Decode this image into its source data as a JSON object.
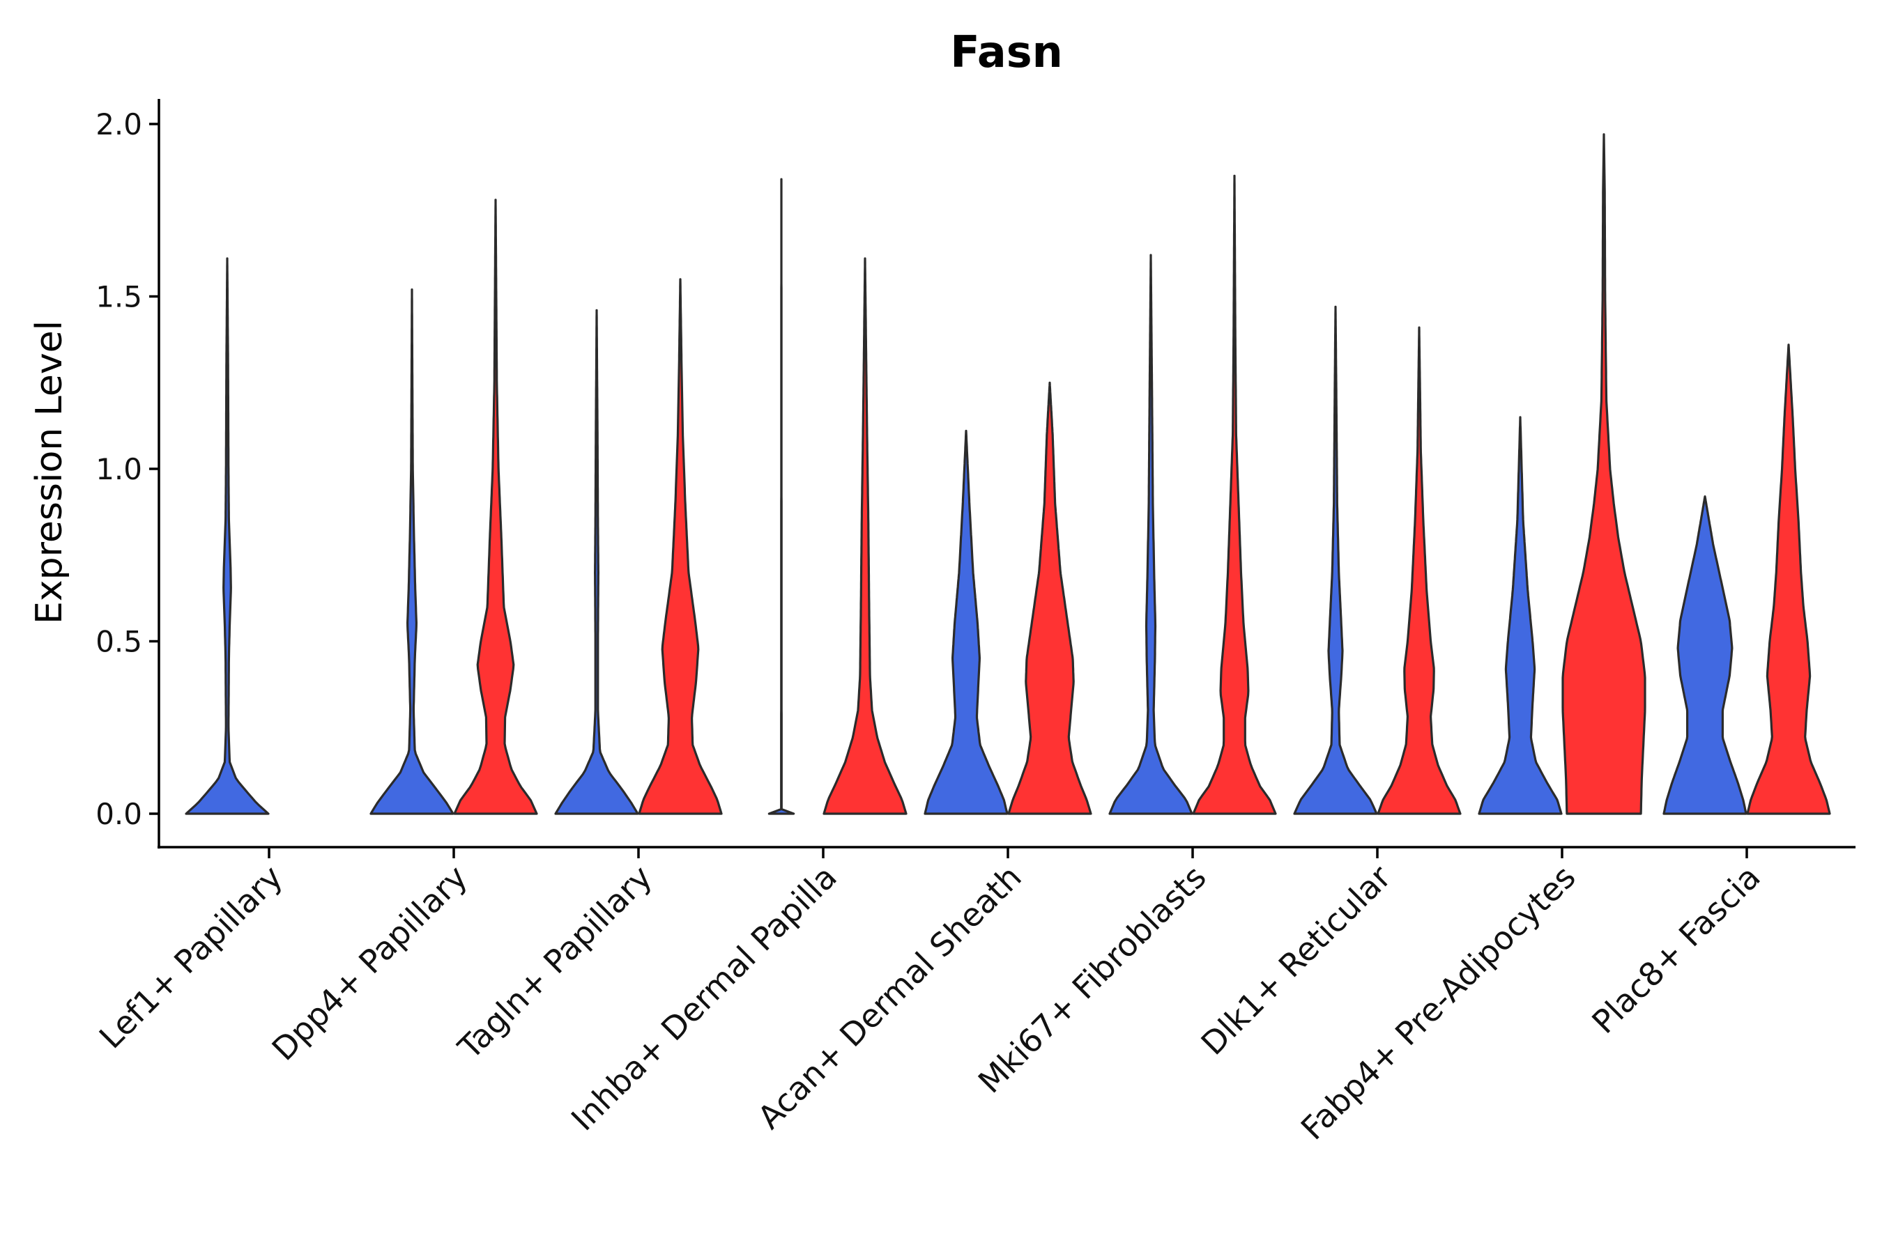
{
  "chart_data": {
    "type": "violin",
    "title": "Fasn",
    "xlabel": "",
    "ylabel": "Expression Level",
    "ylim": [
      -0.1,
      2.08
    ],
    "yticks": [
      "0.0",
      "0.5",
      "1.0",
      "1.5",
      "2.0"
    ],
    "grid": false,
    "legend": "none",
    "colors": {
      "group_a": "#4169E1",
      "group_b": "#FF3333",
      "outline": "#2b2b2b"
    },
    "categories": [
      "Lef1+ Papillary",
      "Dpp4+ Papillary",
      "Tagln+ Papillary",
      "Inhba+ Dermal Papilla",
      "Acan+ Dermal Sheath",
      "Mki67+ Fibroblasts",
      "Dlk1+ Reticular",
      "Fabp4+ Pre-Adipocytes",
      "Plac8+ Fascia"
    ],
    "series": [
      {
        "name": "group_a",
        "color": "#4169E1",
        "violins": [
          {
            "max": 1.61,
            "density": [
              [
                0,
                1.0
              ],
              [
                0.03,
                0.72
              ],
              [
                0.06,
                0.5
              ],
              [
                0.1,
                0.22
              ],
              [
                0.15,
                0.06
              ],
              [
                0.25,
                0.03
              ],
              [
                0.45,
                0.04
              ],
              [
                0.55,
                0.06
              ],
              [
                0.65,
                0.09
              ],
              [
                0.72,
                0.08
              ],
              [
                0.85,
                0.04
              ],
              [
                1.0,
                0.03
              ],
              [
                1.3,
                0.02
              ],
              [
                1.61,
                0.0
              ]
            ]
          },
          {
            "max": 1.52,
            "density": [
              [
                0,
                1.0
              ],
              [
                0.03,
                0.85
              ],
              [
                0.07,
                0.6
              ],
              [
                0.12,
                0.28
              ],
              [
                0.18,
                0.07
              ],
              [
                0.3,
                0.04
              ],
              [
                0.45,
                0.07
              ],
              [
                0.55,
                0.11
              ],
              [
                0.65,
                0.08
              ],
              [
                0.8,
                0.05
              ],
              [
                1.0,
                0.02
              ],
              [
                1.52,
                0.0
              ]
            ]
          },
          {
            "max": 1.46,
            "density": [
              [
                0,
                1.0
              ],
              [
                0.03,
                0.85
              ],
              [
                0.07,
                0.62
              ],
              [
                0.12,
                0.3
              ],
              [
                0.18,
                0.08
              ],
              [
                0.3,
                0.03
              ],
              [
                0.5,
                0.03
              ],
              [
                0.7,
                0.04
              ],
              [
                0.85,
                0.03
              ],
              [
                1.1,
                0.02
              ],
              [
                1.46,
                0.0
              ]
            ]
          },
          {
            "max": 1.84,
            "density": [
              [
                0,
                0.3
              ],
              [
                0.004,
                0.0
              ],
              [
                0.01,
                0.005
              ],
              [
                1.84,
                0.0
              ]
            ]
          },
          {
            "max": 1.11,
            "density": [
              [
                0,
                1.0
              ],
              [
                0.04,
                0.92
              ],
              [
                0.08,
                0.78
              ],
              [
                0.14,
                0.55
              ],
              [
                0.2,
                0.34
              ],
              [
                0.28,
                0.26
              ],
              [
                0.38,
                0.3
              ],
              [
                0.45,
                0.33
              ],
              [
                0.55,
                0.28
              ],
              [
                0.7,
                0.17
              ],
              [
                0.9,
                0.08
              ],
              [
                1.11,
                0.0
              ]
            ]
          },
          {
            "max": 1.62,
            "density": [
              [
                0,
                1.0
              ],
              [
                0.04,
                0.86
              ],
              [
                0.08,
                0.6
              ],
              [
                0.13,
                0.3
              ],
              [
                0.2,
                0.1
              ],
              [
                0.3,
                0.07
              ],
              [
                0.45,
                0.1
              ],
              [
                0.55,
                0.11
              ],
              [
                0.7,
                0.08
              ],
              [
                0.9,
                0.05
              ],
              [
                1.2,
                0.03
              ],
              [
                1.62,
                0.0
              ]
            ]
          },
          {
            "max": 1.47,
            "density": [
              [
                0,
                1.0
              ],
              [
                0.04,
                0.85
              ],
              [
                0.08,
                0.6
              ],
              [
                0.13,
                0.3
              ],
              [
                0.2,
                0.1
              ],
              [
                0.3,
                0.08
              ],
              [
                0.4,
                0.14
              ],
              [
                0.47,
                0.17
              ],
              [
                0.55,
                0.14
              ],
              [
                0.7,
                0.08
              ],
              [
                0.9,
                0.04
              ],
              [
                1.2,
                0.02
              ],
              [
                1.47,
                0.0
              ]
            ]
          },
          {
            "max": 1.15,
            "density": [
              [
                0,
                1.0
              ],
              [
                0.04,
                0.9
              ],
              [
                0.09,
                0.65
              ],
              [
                0.15,
                0.38
              ],
              [
                0.22,
                0.26
              ],
              [
                0.32,
                0.3
              ],
              [
                0.42,
                0.35
              ],
              [
                0.5,
                0.3
              ],
              [
                0.65,
                0.18
              ],
              [
                0.85,
                0.07
              ],
              [
                1.15,
                0.0
              ]
            ]
          },
          {
            "max": 0.92,
            "density": [
              [
                0,
                1.0
              ],
              [
                0.04,
                0.93
              ],
              [
                0.09,
                0.8
              ],
              [
                0.15,
                0.62
              ],
              [
                0.22,
                0.43
              ],
              [
                0.3,
                0.43
              ],
              [
                0.4,
                0.6
              ],
              [
                0.48,
                0.66
              ],
              [
                0.56,
                0.6
              ],
              [
                0.66,
                0.42
              ],
              [
                0.78,
                0.2
              ],
              [
                0.92,
                0.0
              ]
            ]
          }
        ]
      },
      {
        "name": "group_b",
        "color": "#FF3333",
        "violins": [
          null,
          {
            "max": 1.78,
            "density": [
              [
                0,
                1.0
              ],
              [
                0.04,
                0.85
              ],
              [
                0.08,
                0.6
              ],
              [
                0.13,
                0.38
              ],
              [
                0.2,
                0.22
              ],
              [
                0.28,
                0.23
              ],
              [
                0.36,
                0.36
              ],
              [
                0.43,
                0.44
              ],
              [
                0.5,
                0.36
              ],
              [
                0.6,
                0.2
              ],
              [
                0.8,
                0.14
              ],
              [
                1.0,
                0.07
              ],
              [
                1.25,
                0.03
              ],
              [
                1.78,
                0.0
              ]
            ]
          },
          {
            "max": 1.55,
            "density": [
              [
                0,
                1.0
              ],
              [
                0.04,
                0.9
              ],
              [
                0.08,
                0.74
              ],
              [
                0.14,
                0.48
              ],
              [
                0.2,
                0.3
              ],
              [
                0.28,
                0.28
              ],
              [
                0.38,
                0.38
              ],
              [
                0.48,
                0.44
              ],
              [
                0.56,
                0.36
              ],
              [
                0.7,
                0.2
              ],
              [
                0.9,
                0.12
              ],
              [
                1.1,
                0.06
              ],
              [
                1.3,
                0.03
              ],
              [
                1.55,
                0.0
              ]
            ]
          },
          {
            "max": 1.61,
            "density": [
              [
                0,
                1.0
              ],
              [
                0.04,
                0.9
              ],
              [
                0.08,
                0.74
              ],
              [
                0.15,
                0.48
              ],
              [
                0.22,
                0.3
              ],
              [
                0.3,
                0.17
              ],
              [
                0.4,
                0.12
              ],
              [
                0.6,
                0.1
              ],
              [
                0.85,
                0.08
              ],
              [
                1.1,
                0.05
              ],
              [
                1.3,
                0.03
              ],
              [
                1.61,
                0.0
              ]
            ]
          },
          {
            "max": 1.25,
            "density": [
              [
                0,
                1.0
              ],
              [
                0.04,
                0.9
              ],
              [
                0.08,
                0.76
              ],
              [
                0.15,
                0.55
              ],
              [
                0.22,
                0.46
              ],
              [
                0.3,
                0.52
              ],
              [
                0.38,
                0.58
              ],
              [
                0.45,
                0.56
              ],
              [
                0.55,
                0.44
              ],
              [
                0.7,
                0.26
              ],
              [
                0.9,
                0.13
              ],
              [
                1.1,
                0.07
              ],
              [
                1.25,
                0.0
              ]
            ]
          },
          {
            "max": 1.85,
            "density": [
              [
                0,
                1.0
              ],
              [
                0.04,
                0.86
              ],
              [
                0.08,
                0.62
              ],
              [
                0.14,
                0.4
              ],
              [
                0.2,
                0.26
              ],
              [
                0.28,
                0.26
              ],
              [
                0.35,
                0.34
              ],
              [
                0.42,
                0.32
              ],
              [
                0.55,
                0.22
              ],
              [
                0.7,
                0.16
              ],
              [
                0.9,
                0.1
              ],
              [
                1.1,
                0.04
              ],
              [
                1.4,
                0.02
              ],
              [
                1.85,
                0.0
              ]
            ]
          },
          {
            "max": 1.41,
            "density": [
              [
                0,
                1.0
              ],
              [
                0.04,
                0.88
              ],
              [
                0.08,
                0.68
              ],
              [
                0.14,
                0.46
              ],
              [
                0.2,
                0.32
              ],
              [
                0.28,
                0.28
              ],
              [
                0.36,
                0.35
              ],
              [
                0.42,
                0.36
              ],
              [
                0.5,
                0.28
              ],
              [
                0.65,
                0.18
              ],
              [
                0.85,
                0.1
              ],
              [
                1.05,
                0.04
              ],
              [
                1.41,
                0.0
              ]
            ]
          },
          {
            "max": 1.97,
            "density": [
              [
                0,
                0.9
              ],
              [
                0.1,
                0.92
              ],
              [
                0.2,
                0.96
              ],
              [
                0.3,
                1.0
              ],
              [
                0.4,
                1.0
              ],
              [
                0.5,
                0.9
              ],
              [
                0.6,
                0.7
              ],
              [
                0.7,
                0.5
              ],
              [
                0.8,
                0.35
              ],
              [
                0.9,
                0.24
              ],
              [
                1.0,
                0.15
              ],
              [
                1.2,
                0.06
              ],
              [
                1.5,
                0.03
              ],
              [
                1.8,
                0.02
              ],
              [
                1.97,
                0.0
              ]
            ]
          },
          {
            "max": 1.36,
            "density": [
              [
                0,
                1.0
              ],
              [
                0.04,
                0.92
              ],
              [
                0.09,
                0.76
              ],
              [
                0.15,
                0.54
              ],
              [
                0.22,
                0.4
              ],
              [
                0.3,
                0.44
              ],
              [
                0.4,
                0.52
              ],
              [
                0.5,
                0.46
              ],
              [
                0.6,
                0.36
              ],
              [
                0.7,
                0.3
              ],
              [
                0.85,
                0.24
              ],
              [
                1.0,
                0.16
              ],
              [
                1.15,
                0.1
              ],
              [
                1.36,
                0.0
              ]
            ]
          }
        ]
      }
    ]
  }
}
